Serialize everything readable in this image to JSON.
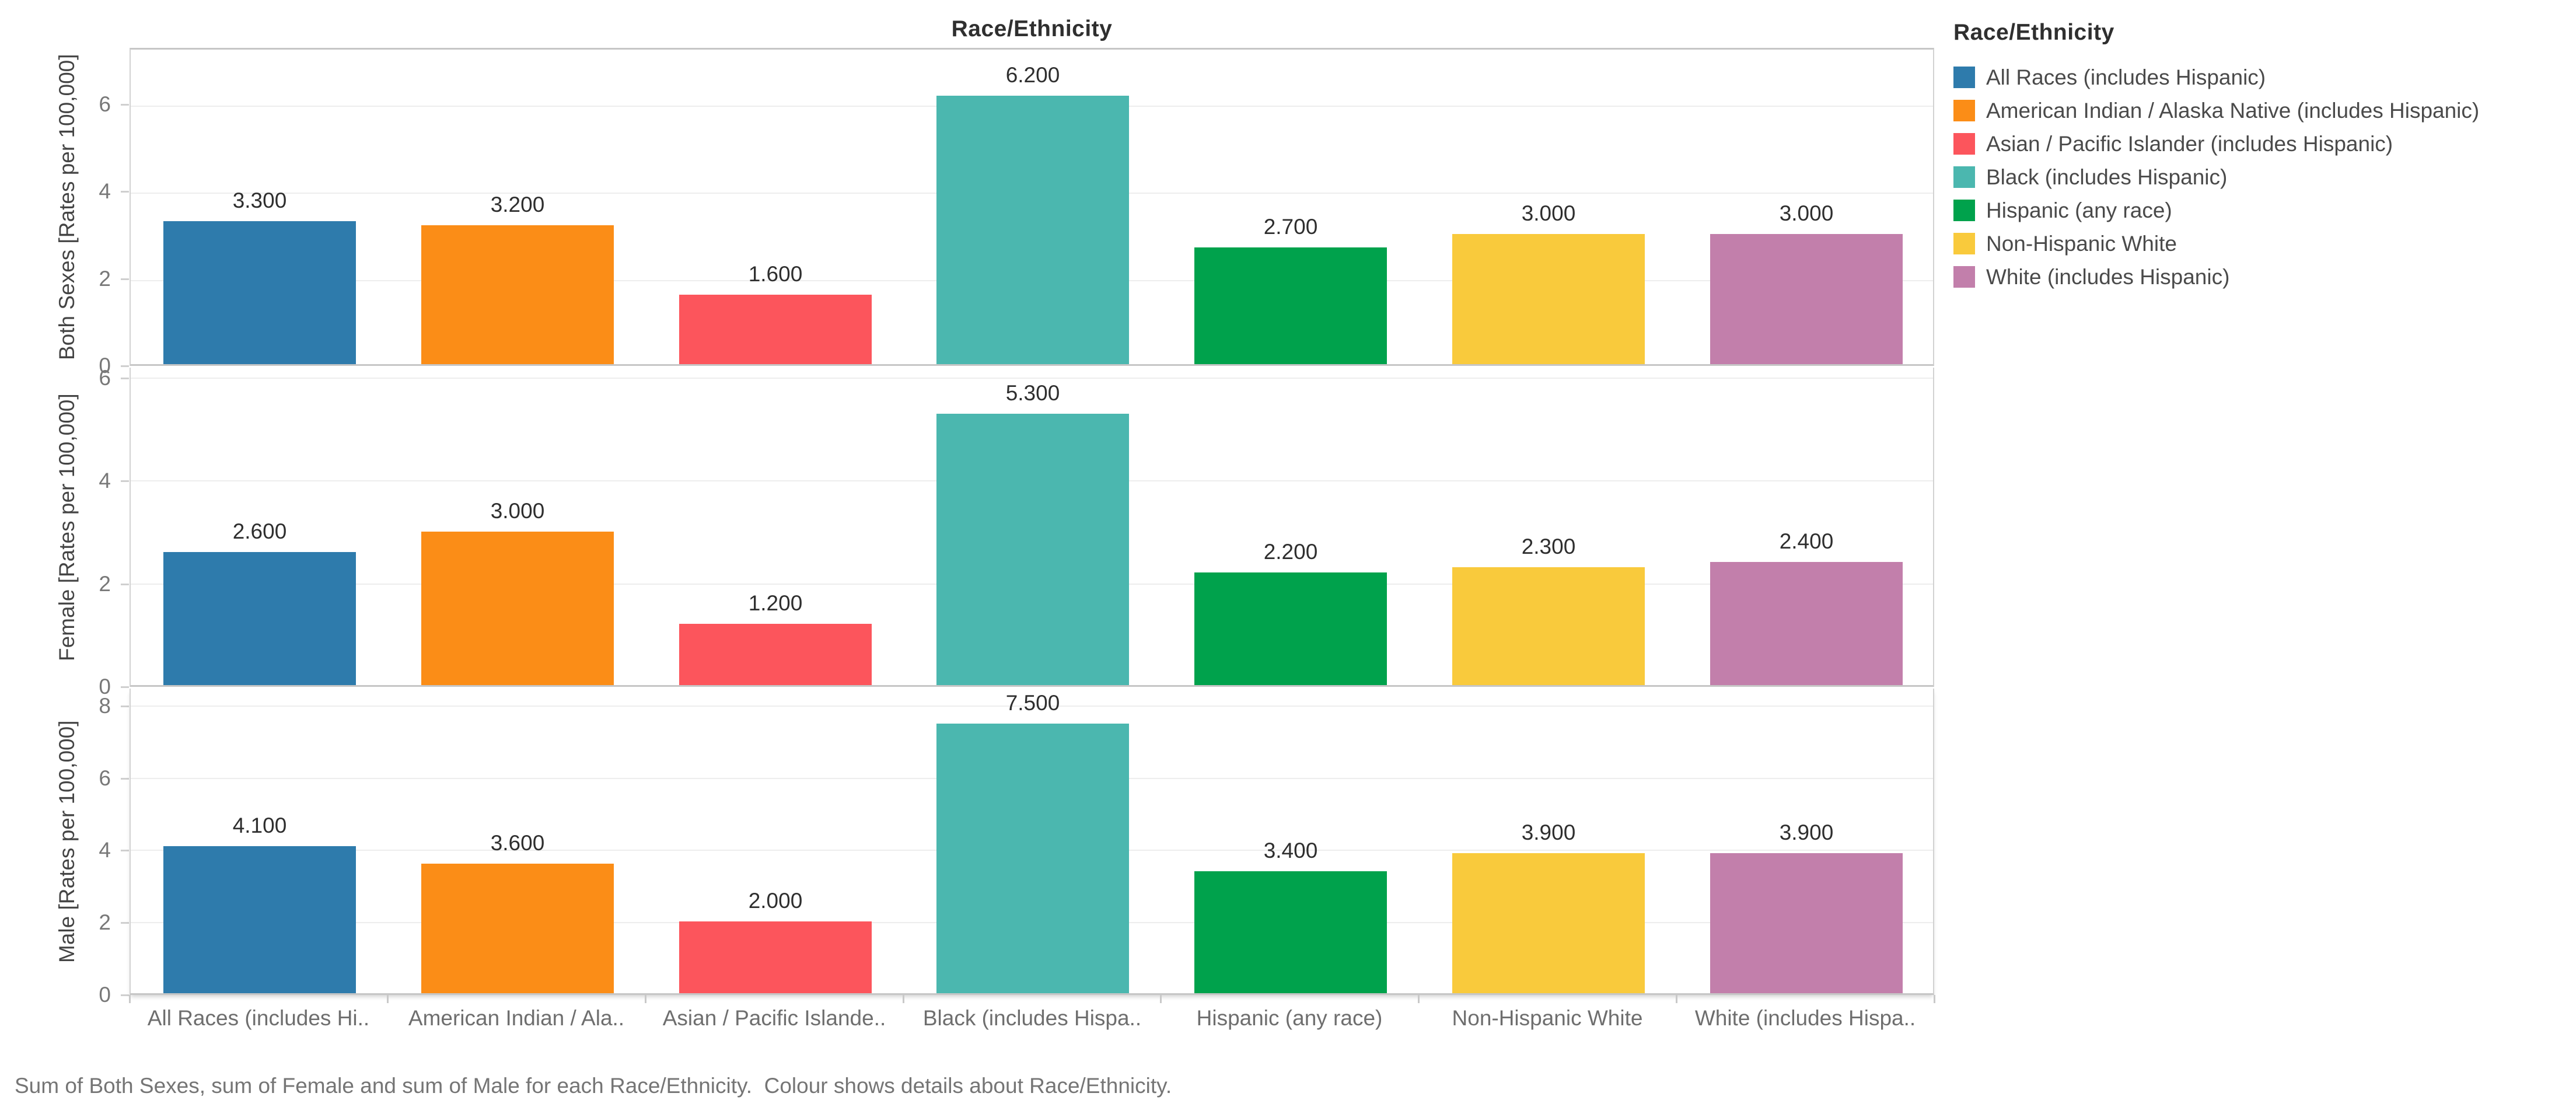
{
  "title": "Race/Ethnicity",
  "caption": "Sum of Both Sexes, sum of Female and sum of Male for each Race/Ethnicity.  Colour shows details about Race/Ethnicity.",
  "legend": {
    "title": "Race/Ethnicity",
    "items": [
      {
        "label": "All Races (includes Hispanic)",
        "color": "#2E7BAC"
      },
      {
        "label": "American Indian / Alaska Native (includes Hispanic)",
        "color": "#FB8D17"
      },
      {
        "label": "Asian / Pacific Islander (includes Hispanic)",
        "color": "#FC555C"
      },
      {
        "label": "Black (includes Hispanic)",
        "color": "#4BB7AF"
      },
      {
        "label": "Hispanic (any race)",
        "color": "#00A24C"
      },
      {
        "label": "Non-Hispanic White",
        "color": "#F9CA3C"
      },
      {
        "label": "White (includes Hispanic)",
        "color": "#C27FAB"
      }
    ]
  },
  "chart_data": {
    "type": "bar",
    "title": "Race/Ethnicity",
    "legend_position": "right",
    "grid": true,
    "categories": [
      "All Races (includes Hispanic)",
      "American Indian / Alaska Native (includes Hispanic)",
      "Asian / Pacific Islander (includes Hispanic)",
      "Black (includes Hispanic)",
      "Hispanic (any race)",
      "Non-Hispanic White",
      "White (includes Hispanic)"
    ],
    "category_tick_labels": [
      "All Races (includes Hi..",
      "American Indian / Ala..",
      "Asian / Pacific Islande..",
      "Black (includes Hispa..",
      "Hispanic (any race)",
      "Non-Hispanic White",
      "White (includes Hispa.."
    ],
    "colors": [
      "#2E7BAC",
      "#FB8D17",
      "#FC555C",
      "#4BB7AF",
      "#00A24C",
      "#F9CA3C",
      "#C27FAB"
    ],
    "panels": [
      {
        "row_label": "Both Sexes",
        "ylabel": "Both Sexes [Rates per 100,000]",
        "yticks": [
          0,
          2,
          4,
          6
        ],
        "ylim": [
          0,
          7.3
        ],
        "values": [
          3.3,
          3.2,
          1.6,
          6.2,
          2.7,
          3.0,
          3.0
        ],
        "value_labels": [
          "3.300",
          "3.200",
          "1.600",
          "6.200",
          "2.700",
          "3.000",
          "3.000"
        ]
      },
      {
        "row_label": "Female",
        "ylabel": "Female [Rates per 100,000]",
        "yticks": [
          0,
          2,
          4,
          6
        ],
        "ylim": [
          0,
          6.2
        ],
        "values": [
          2.6,
          3.0,
          1.2,
          5.3,
          2.2,
          2.3,
          2.4
        ],
        "value_labels": [
          "2.600",
          "3.000",
          "1.200",
          "5.300",
          "2.200",
          "2.300",
          "2.400"
        ]
      },
      {
        "row_label": "Male",
        "ylabel": "Male [Rates per 100,000]",
        "yticks": [
          0,
          2,
          4,
          6,
          8
        ],
        "ylim": [
          0,
          8.48
        ],
        "values": [
          4.1,
          3.6,
          2.0,
          7.5,
          3.4,
          3.9,
          3.9
        ],
        "value_labels": [
          "4.100",
          "3.600",
          "2.000",
          "7.500",
          "3.400",
          "3.900",
          "3.900"
        ]
      }
    ]
  }
}
